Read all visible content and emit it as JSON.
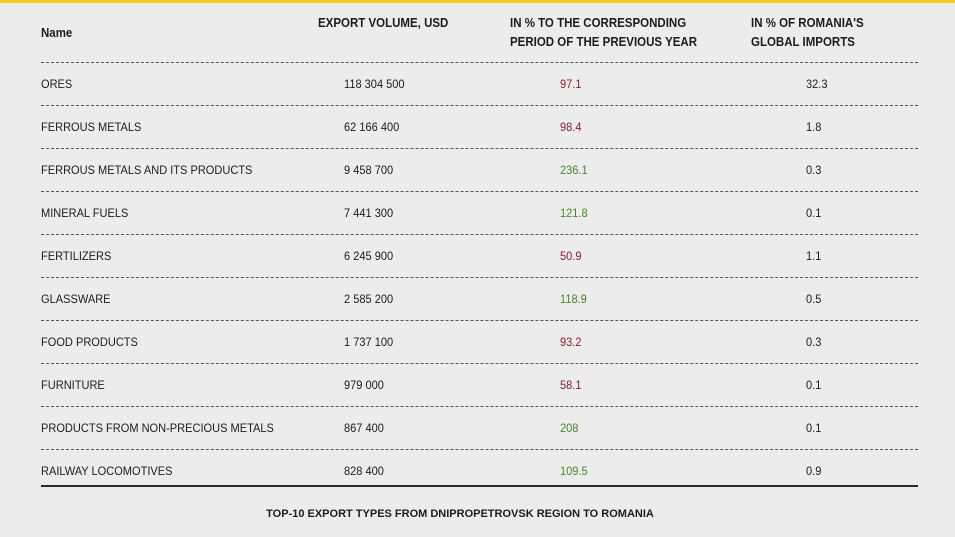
{
  "header": {
    "name": "Name",
    "volume": "EXPORT VOLUME, USD",
    "pct_line1": "IN % TO THE CORRESPONDING",
    "pct_line2": "PERIOD OF THE PREVIOUS YEAR",
    "imp_line1": "IN % OF ROMANIA'S",
    "imp_line2": "GLOBAL IMPORTS"
  },
  "colors": {
    "accent": "#f4cb16",
    "up": "#3f8c22",
    "down": "#8a1f2a",
    "background": "#ececec"
  },
  "chart_data": {
    "type": "table",
    "columns": [
      "Name",
      "EXPORT VOLUME, USD",
      "IN % TO THE CORRESPONDING PERIOD OF THE PREVIOUS YEAR",
      "IN % OF ROMANIA'S GLOBAL IMPORTS"
    ],
    "rows": [
      {
        "name": "ORES",
        "volume": "118 304 500",
        "pct": "97.1",
        "trend": "down",
        "imp": "32.3"
      },
      {
        "name": "FERROUS METALS",
        "volume": "62 166 400",
        "pct": "98.4",
        "trend": "down",
        "imp": "1.8"
      },
      {
        "name": "FERROUS METALS AND ITS PRODUCTS",
        "volume": "9 458 700",
        "pct": "236.1",
        "trend": "up",
        "imp": "0.3"
      },
      {
        "name": "MINERAL FUELS",
        "volume": "7 441 300",
        "pct": "121.8",
        "trend": "up",
        "imp": "0.1"
      },
      {
        "name": "FERTILIZERS",
        "volume": "6 245 900",
        "pct": "50.9",
        "trend": "down",
        "imp": "1.1"
      },
      {
        "name": "GLASSWARE",
        "volume": "2 585 200",
        "pct": "118.9",
        "trend": "up",
        "imp": "0.5"
      },
      {
        "name": "FOOD PRODUCTS",
        "volume": "1 737 100",
        "pct": "93.2",
        "trend": "down",
        "imp": "0.3"
      },
      {
        "name": "FURNITURE",
        "volume": "979 000",
        "pct": "58.1",
        "trend": "down",
        "imp": "0.1"
      },
      {
        "name": "PRODUCTS FROM NON-PRECIOUS METALS",
        "volume": "867 400",
        "pct": "208",
        "trend": "up",
        "imp": "0.1"
      },
      {
        "name": "RAILWAY LOCOMOTIVES",
        "volume": "828 400",
        "pct": "109.5",
        "trend": "up",
        "imp": "0.9"
      }
    ]
  },
  "caption": "TOP-10 EXPORT TYPES FROM DNIPROPETROVSK REGION TO ROMANIA"
}
